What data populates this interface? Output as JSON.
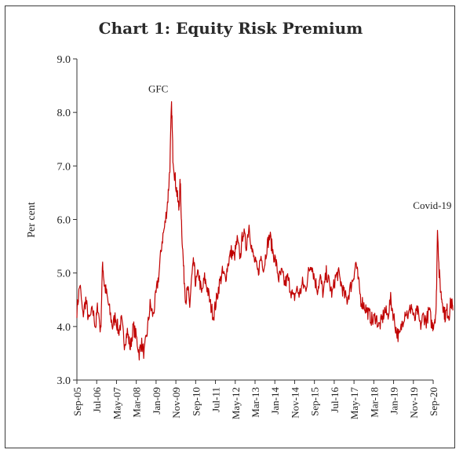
{
  "chart_data": {
    "type": "line",
    "title": "Chart 1: Equity Risk Premium",
    "xlabel": "",
    "ylabel": "Per cent",
    "ylim": [
      3.0,
      9.0
    ],
    "yticks": [
      "3.0",
      "4.0",
      "5.0",
      "6.0",
      "7.0",
      "8.0",
      "9.0"
    ],
    "xticks": [
      "Sep-05",
      "Jul-06",
      "May-07",
      "Mar-08",
      "Jan-09",
      "Nov-09",
      "Sep-10",
      "Jul-11",
      "May-12",
      "Mar-13",
      "Jan-14",
      "Nov-14",
      "Sep-15",
      "Jul-16",
      "May-17",
      "Mar-18",
      "Jan-19",
      "Nov-19",
      "Sep-20"
    ],
    "annotations": [
      {
        "text": "GFC",
        "x": "Jan-09"
      },
      {
        "text": "Covid-19",
        "x": "Sep-20"
      }
    ],
    "line_color": "#c00000",
    "grid": false,
    "series": [
      {
        "approx_points": [
          [
            0.0,
            4.3
          ],
          [
            0.15,
            4.8
          ],
          [
            0.3,
            4.2
          ],
          [
            0.45,
            4.5
          ],
          [
            0.6,
            4.1
          ],
          [
            0.8,
            4.3
          ],
          [
            0.95,
            4.0
          ],
          [
            1.05,
            4.4
          ],
          [
            1.2,
            3.9
          ],
          [
            1.3,
            5.2
          ],
          [
            1.38,
            4.8
          ],
          [
            1.5,
            4.6
          ],
          [
            1.65,
            4.3
          ],
          [
            1.8,
            4.0
          ],
          [
            1.95,
            4.2
          ],
          [
            2.1,
            3.9
          ],
          [
            2.25,
            4.1
          ],
          [
            2.4,
            3.7
          ],
          [
            2.55,
            3.9
          ],
          [
            2.7,
            3.6
          ],
          [
            2.85,
            4.0
          ],
          [
            3.0,
            3.8
          ],
          [
            3.15,
            3.5
          ],
          [
            3.25,
            3.7
          ],
          [
            3.4,
            3.5
          ],
          [
            3.55,
            3.9
          ],
          [
            3.7,
            4.4
          ],
          [
            3.85,
            4.2
          ],
          [
            4.0,
            4.6
          ],
          [
            4.15,
            5.0
          ],
          [
            4.3,
            5.6
          ],
          [
            4.45,
            5.9
          ],
          [
            4.6,
            6.4
          ],
          [
            4.7,
            7.0
          ],
          [
            4.78,
            8.2
          ],
          [
            4.85,
            7.2
          ],
          [
            4.95,
            6.8
          ],
          [
            5.05,
            6.5
          ],
          [
            5.15,
            6.2
          ],
          [
            5.22,
            6.7
          ],
          [
            5.3,
            5.8
          ],
          [
            5.4,
            5.0
          ],
          [
            5.5,
            4.5
          ],
          [
            5.6,
            4.7
          ],
          [
            5.7,
            4.4
          ],
          [
            5.8,
            4.9
          ],
          [
            5.9,
            5.2
          ],
          [
            6.0,
            4.8
          ],
          [
            6.15,
            5.0
          ],
          [
            6.3,
            4.6
          ],
          [
            6.45,
            4.9
          ],
          [
            6.6,
            4.7
          ],
          [
            6.75,
            4.4
          ],
          [
            6.9,
            4.2
          ],
          [
            7.05,
            4.5
          ],
          [
            7.2,
            4.8
          ],
          [
            7.35,
            5.0
          ],
          [
            7.5,
            4.9
          ],
          [
            7.65,
            5.2
          ],
          [
            7.8,
            5.4
          ],
          [
            7.95,
            5.3
          ],
          [
            8.1,
            5.6
          ],
          [
            8.25,
            5.3
          ],
          [
            8.4,
            5.8
          ],
          [
            8.55,
            5.5
          ],
          [
            8.7,
            5.9
          ],
          [
            8.85,
            5.4
          ],
          [
            9.0,
            5.2
          ],
          [
            9.15,
            5.0
          ],
          [
            9.3,
            5.3
          ],
          [
            9.45,
            5.1
          ],
          [
            9.6,
            5.5
          ],
          [
            9.75,
            5.7
          ],
          [
            9.9,
            5.4
          ],
          [
            10.05,
            5.2
          ],
          [
            10.2,
            4.9
          ],
          [
            10.35,
            5.0
          ],
          [
            10.5,
            4.8
          ],
          [
            10.65,
            4.9
          ],
          [
            10.8,
            4.7
          ],
          [
            10.95,
            4.5
          ],
          [
            11.1,
            4.7
          ],
          [
            11.25,
            4.6
          ],
          [
            11.4,
            4.8
          ],
          [
            11.55,
            4.7
          ],
          [
            11.7,
            5.0
          ],
          [
            11.85,
            5.2
          ],
          [
            12.0,
            4.9
          ],
          [
            12.15,
            4.7
          ],
          [
            12.3,
            4.9
          ],
          [
            12.45,
            4.6
          ],
          [
            12.6,
            5.0
          ],
          [
            12.75,
            4.8
          ],
          [
            12.9,
            4.6
          ],
          [
            13.05,
            4.9
          ],
          [
            13.2,
            5.0
          ],
          [
            13.35,
            4.8
          ],
          [
            13.5,
            4.6
          ],
          [
            13.65,
            4.5
          ],
          [
            13.8,
            4.7
          ],
          [
            13.95,
            4.9
          ],
          [
            14.1,
            5.2
          ],
          [
            14.2,
            4.9
          ],
          [
            14.35,
            4.5
          ],
          [
            14.5,
            4.4
          ],
          [
            14.65,
            4.3
          ],
          [
            14.8,
            4.2
          ],
          [
            14.95,
            4.1
          ],
          [
            15.1,
            4.2
          ],
          [
            15.25,
            4.0
          ],
          [
            15.4,
            4.1
          ],
          [
            15.55,
            4.3
          ],
          [
            15.7,
            4.2
          ],
          [
            15.85,
            4.5
          ],
          [
            16.0,
            4.2
          ],
          [
            16.15,
            3.9
          ],
          [
            16.3,
            3.8
          ],
          [
            16.45,
            4.1
          ],
          [
            16.6,
            4.3
          ],
          [
            16.75,
            4.2
          ],
          [
            16.9,
            4.4
          ],
          [
            17.05,
            4.1
          ],
          [
            17.2,
            4.3
          ],
          [
            17.35,
            4.0
          ],
          [
            17.5,
            4.2
          ],
          [
            17.65,
            4.1
          ],
          [
            17.8,
            4.3
          ],
          [
            17.95,
            4.0
          ],
          [
            18.05,
            4.1
          ],
          [
            18.15,
            4.3
          ],
          [
            18.22,
            5.9
          ],
          [
            18.3,
            5.0
          ],
          [
            18.4,
            4.6
          ],
          [
            18.5,
            4.4
          ],
          [
            18.6,
            4.2
          ],
          [
            18.7,
            4.3
          ],
          [
            18.8,
            4.2
          ],
          [
            18.9,
            4.5
          ],
          [
            19.0,
            4.3
          ]
        ]
      }
    ]
  }
}
